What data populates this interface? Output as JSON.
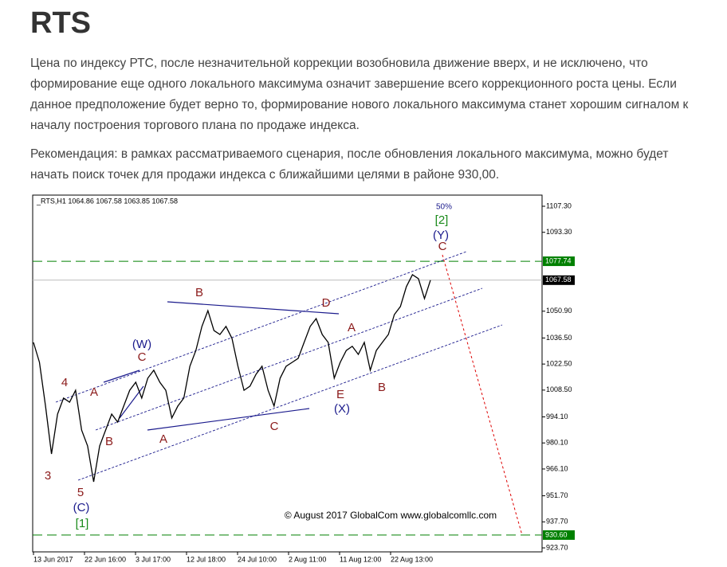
{
  "header": {
    "title": "RTS"
  },
  "paragraphs": [
    "Цена по индексу РТС, после незначительной коррекции возобновила движение вверх, и не исключено, что формирование еще одного локального максимума означит завершение всего коррекционного роста цены. Если данное предположение будет верно то, формирование нового локального максимума станет хорошим сигналом к началу построения торгового плана по продаже индекса.",
    "Рекомендация:  в рамках рассматриваемого сценария, после обновления локального максимума, можно будет начать поиск точек для продажи индекса с ближайшими целями в районе 930,00."
  ],
  "chart_data": {
    "type": "line",
    "chart_label": "_RTS,H1  1064.86 1067.58 1063.85 1067.58",
    "copyright": "© August 2017 GlobalCom www.globalcomllc.com",
    "xtick_labels": [
      "13 Jun 2017",
      "22 Jun 16:00",
      "3 Jul 17:00",
      "12 Jul 18:00",
      "24 Jul 10:00",
      "2 Aug 11:00",
      "11 Aug 12:00",
      "22 Aug 13:00"
    ],
    "ylim": [
      921.56,
      1113.29
    ],
    "yticks": [
      {
        "value": 1107.3,
        "label": "1107.30"
      },
      {
        "value": 1093.3,
        "label": "1093.30"
      },
      {
        "value": 1050.9,
        "label": "1050.90"
      },
      {
        "value": 1036.5,
        "label": "1036.50"
      },
      {
        "value": 1022.5,
        "label": "1022.50"
      },
      {
        "value": 1008.5,
        "label": "1008.50"
      },
      {
        "value": 994.1,
        "label": "994.10"
      },
      {
        "value": 980.1,
        "label": "980.10"
      },
      {
        "value": 966.1,
        "label": "966.10"
      },
      {
        "value": 951.7,
        "label": "951.70"
      },
      {
        "value": 937.7,
        "label": "937.70"
      },
      {
        "value": 923.7,
        "label": "923.70"
      }
    ],
    "levels": [
      {
        "value": 1077.74,
        "label": "1077.74",
        "color": "#008000"
      },
      {
        "value": 930.6,
        "label": "930.60",
        "color": "#008000"
      },
      {
        "value": 1067.58,
        "label": "1067.58",
        "color": "#000000"
      }
    ],
    "series": [
      {
        "name": "RTS",
        "color": "#000000",
        "values": [
          1034.1,
          1023.4,
          999.9,
          974.2,
          995.6,
          1004.2,
          1002.0,
          1008.4,
          987.0,
          978.5,
          959.2,
          978.5,
          987.0,
          995.6,
          991.3,
          999.9,
          1008.4,
          1012.7,
          1004.2,
          1014.9,
          1019.2,
          1012.7,
          1008.4,
          993.5,
          999.9,
          1004.2,
          1021.3,
          1029.8,
          1042.7,
          1051.2,
          1040.5,
          1038.4,
          1042.7,
          1036.3,
          1021.3,
          1008.4,
          1010.6,
          1017.0,
          1021.3,
          1008.4,
          999.9,
          1014.9,
          1021.3,
          1023.4,
          1025.5,
          1034.1,
          1042.7,
          1046.9,
          1038.4,
          1034.1,
          1014.9,
          1023.4,
          1029.8,
          1032.0,
          1027.7,
          1034.1,
          1019.2,
          1029.8,
          1034.1,
          1038.4,
          1049.1,
          1053.4,
          1064.1,
          1070.5,
          1068.4,
          1057.7,
          1067.58
        ]
      }
    ],
    "annotations": [
      "4",
      "3",
      "5",
      "(C)",
      "[1]",
      "A",
      "B",
      "C",
      "(W)",
      "A",
      "B",
      "C",
      "D",
      "E",
      "(X)",
      "A",
      "B",
      "C",
      "(Y)",
      "[2]",
      "50%"
    ]
  }
}
